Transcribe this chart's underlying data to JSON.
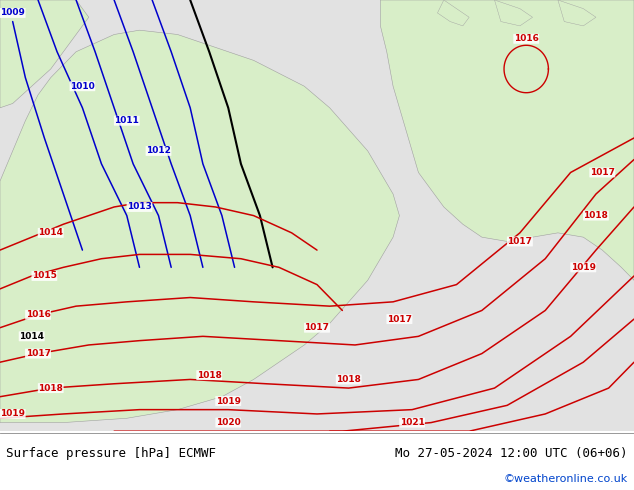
{
  "title_left": "Surface pressure [hPa] ECMWF",
  "title_right": "Mo 27-05-2024 12:00 UTC (06+06)",
  "credit": "©weatheronline.co.uk",
  "bg_land_light": "#d8eec8",
  "bg_sea": "#e2e2e2",
  "contour_blue": "#0000cc",
  "contour_black": "#000000",
  "contour_red": "#cc0000",
  "footer_bg": "#ffffff",
  "figsize": [
    6.34,
    4.9
  ],
  "dpi": 100
}
